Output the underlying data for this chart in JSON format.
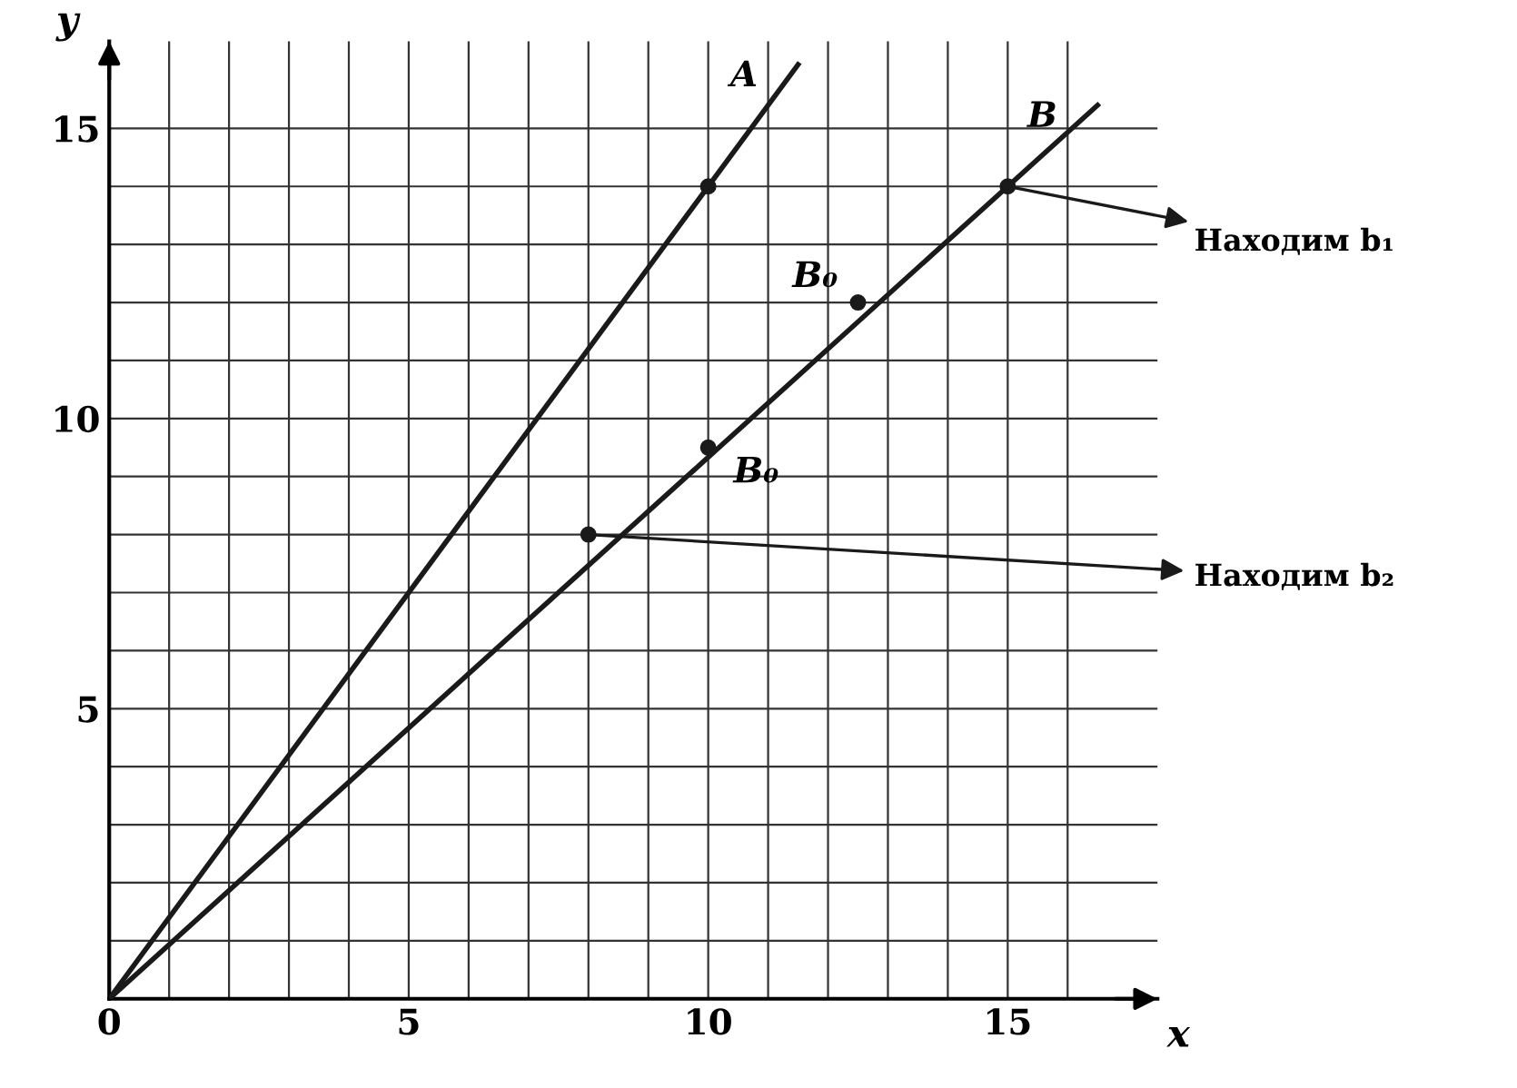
{
  "chart_data": {
    "type": "line",
    "xlabel": "x",
    "ylabel": "y",
    "series": [
      {
        "name": "A",
        "color": "#1a1a1a",
        "x": [
          0,
          11.5
        ],
        "values": [
          0,
          16.1
        ]
      },
      {
        "name": "B",
        "color": "#1a1a1a",
        "x": [
          0,
          16.5
        ],
        "values": [
          0,
          15.4
        ]
      },
      {
        "type": "scatter",
        "color": "#1a1a1a",
        "marker": "circle",
        "x": [
          10,
          15,
          12.5,
          10,
          8
        ],
        "values": [
          14,
          14,
          12,
          9.5,
          8
        ]
      }
    ],
    "annotations": [
      {
        "text": "B₀",
        "x": 12.5,
        "y": 12
      },
      {
        "text": "B₀",
        "x": 10,
        "y": 9.5
      },
      {
        "text": "Находим b₁",
        "x": 15,
        "y": 14
      },
      {
        "text": "Находим b₂",
        "x": 8,
        "y": 8
      }
    ],
    "xlim": [
      0,
      17.5
    ],
    "ylim": [
      0,
      16.5
    ],
    "xticks": [
      0,
      {
        "value": 1,
        "label": null
      },
      {
        "value": 2,
        "label": null
      },
      {
        "value": 3,
        "label": null
      },
      {
        "value": 4,
        "label": null
      },
      5,
      {
        "value": 6,
        "label": null
      },
      {
        "value": 7,
        "label": null
      },
      {
        "value": 8,
        "label": null
      },
      {
        "value": 9,
        "label": null
      },
      10,
      {
        "value": 11,
        "label": null
      },
      {
        "value": 12,
        "label": null
      },
      {
        "value": 13,
        "label": null
      },
      {
        "value": 14,
        "label": null
      },
      15,
      {
        "value": 16,
        "label": null
      }
    ],
    "yticks": [
      {
        "value": 0,
        "label": null
      },
      {
        "value": 1,
        "label": null
      },
      {
        "value": 2,
        "label": null
      },
      {
        "value": 3,
        "label": null
      },
      {
        "value": 4,
        "label": null
      },
      5,
      {
        "value": 6,
        "label": null
      },
      {
        "value": 7,
        "label": null
      },
      {
        "value": 8,
        "label": null
      },
      {
        "value": 9,
        "label": null
      },
      10,
      {
        "value": 11,
        "label": null
      },
      {
        "value": 12,
        "label": null
      },
      {
        "value": 13,
        "label": null
      },
      {
        "value": 14,
        "label": null
      },
      15
    ],
    "grid": true,
    "marker": "none",
    "line_style": "solid"
  }
}
